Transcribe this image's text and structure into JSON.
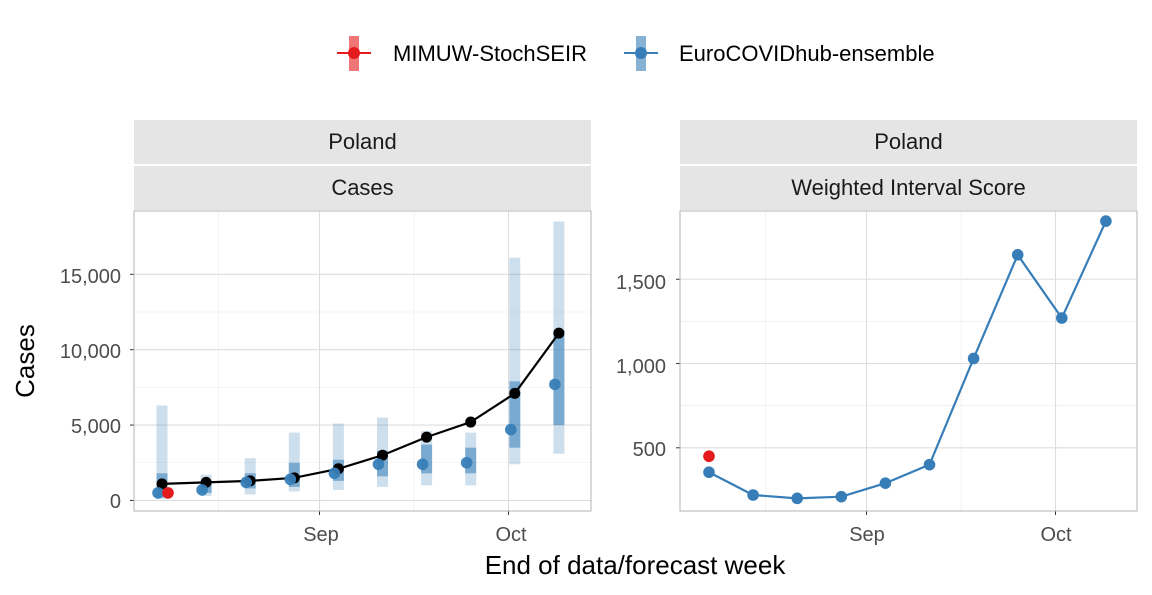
{
  "legend": {
    "items": [
      {
        "label": "MIMUW-StochSEIR",
        "color": "#e41a1c"
      },
      {
        "label": "EuroCOVIDhub-ensemble",
        "color": "#377eb8"
      }
    ]
  },
  "xlabel": "End of data/forecast week",
  "ylabel": "Cases",
  "observed_color": "#000000",
  "chart_data": [
    {
      "type": "line",
      "strip_top": "Poland",
      "strip_bottom": "Cases",
      "x_ticks": [
        "Sep",
        "Oct"
      ],
      "y_ticks": [
        "0",
        "5,000",
        "10,000",
        "15,000"
      ],
      "ylim": [
        -700,
        19200
      ],
      "x_dates": [
        "2021-08-07",
        "2021-08-14",
        "2021-08-21",
        "2021-08-28",
        "2021-09-04",
        "2021-09-11",
        "2021-09-18",
        "2021-09-25",
        "2021-10-02",
        "2021-10-09"
      ],
      "observed": [
        1100,
        1200,
        1300,
        1500,
        2100,
        3000,
        4200,
        5200,
        7100,
        11100
      ],
      "series": [
        {
          "name": "EuroCOVIDhub-ensemble",
          "median": [
            500,
            700,
            1200,
            1400,
            1800,
            2400,
            2400,
            2500,
            4700,
            7700
          ],
          "inner": [
            [
              200,
              1800
            ],
            [
              500,
              1200
            ],
            [
              800,
              1800
            ],
            [
              900,
              2500
            ],
            [
              1300,
              2700
            ],
            [
              1600,
              3300
            ],
            [
              1800,
              3700
            ],
            [
              1800,
              3500
            ],
            [
              3500,
              7900
            ],
            [
              5000,
              11300
            ]
          ],
          "outer": [
            [
              100,
              6300
            ],
            [
              300,
              1700
            ],
            [
              400,
              2800
            ],
            [
              600,
              4500
            ],
            [
              700,
              5100
            ],
            [
              900,
              5500
            ],
            [
              1000,
              4600
            ],
            [
              1000,
              4500
            ],
            [
              2400,
              16100
            ],
            [
              3100,
              18500
            ]
          ]
        },
        {
          "name": "MIMUW-StochSEIR",
          "median": [
            500
          ],
          "inner": [
            [
              500,
              500
            ]
          ],
          "outer": [
            [
              500,
              500
            ]
          ]
        }
      ]
    },
    {
      "type": "line",
      "strip_top": "Poland",
      "strip_bottom": "Weighted Interval Score",
      "x_ticks": [
        "Sep",
        "Oct"
      ],
      "y_ticks": [
        "500",
        "1,000",
        "1,500"
      ],
      "ylim": [
        125,
        1905
      ],
      "x_dates": [
        "2021-08-07",
        "2021-08-14",
        "2021-08-21",
        "2021-08-28",
        "2021-09-04",
        "2021-09-11",
        "2021-09-18",
        "2021-09-25",
        "2021-10-02",
        "2021-10-09"
      ],
      "series": [
        {
          "name": "EuroCOVIDhub-ensemble",
          "values": [
            355,
            220,
            200,
            210,
            290,
            400,
            1030,
            1645,
            1270,
            1845
          ]
        },
        {
          "name": "MIMUW-StochSEIR",
          "values": [
            450
          ]
        }
      ]
    }
  ]
}
